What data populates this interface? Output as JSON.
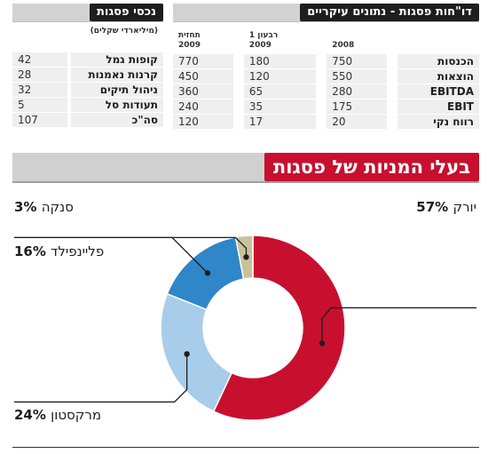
{
  "assets_panel": {
    "title": "נכסי פסגות",
    "unit_note": "(מיליארדי שקלים)",
    "rows": [
      {
        "label": "קופות גמל",
        "value": "42"
      },
      {
        "label": "קרנות נאמנות",
        "value": "28"
      },
      {
        "label": "ניהול תיקים",
        "value": "32"
      },
      {
        "label": "תעודות סל",
        "value": "5"
      },
      {
        "label": "סה\"כ",
        "value": "107"
      }
    ]
  },
  "report_panel": {
    "title": "דו\"חות פסגות - נתונים עיקריים",
    "col_headers": [
      {
        "line1": "",
        "line2": "2008"
      },
      {
        "line1": "רבעון 1",
        "line2": "2009"
      },
      {
        "line1": "תחזית",
        "line2": "2009"
      }
    ],
    "rows": [
      {
        "label": "הכנסות",
        "values": [
          "750",
          "180",
          "770"
        ]
      },
      {
        "label": "הוצאות",
        "values": [
          "550",
          "120",
          "450"
        ]
      },
      {
        "label": "EBITDA",
        "values": [
          "280",
          "65",
          "360"
        ]
      },
      {
        "label": "EBIT",
        "values": [
          "175",
          "35",
          "240"
        ]
      },
      {
        "label": "רווח נקי",
        "values": [
          "20",
          "17",
          "120"
        ]
      }
    ]
  },
  "ownership": {
    "title": "בעלי המניות של פסגות"
  },
  "chart_data": {
    "type": "pie",
    "title": "בעלי המניות של פסגות",
    "unit": "%",
    "slices": [
      {
        "name": "יורק",
        "value": 57,
        "label": "57%",
        "color": "#c8102e"
      },
      {
        "name": "מרקסטון",
        "value": 24,
        "label": "24%",
        "color": "#a8cdea"
      },
      {
        "name": "פליינפילד",
        "value": 16,
        "label": "16%",
        "color": "#2f86c8"
      },
      {
        "name": "סנקה",
        "value": 3,
        "label": "3%",
        "color": "#c8c29a"
      }
    ]
  }
}
